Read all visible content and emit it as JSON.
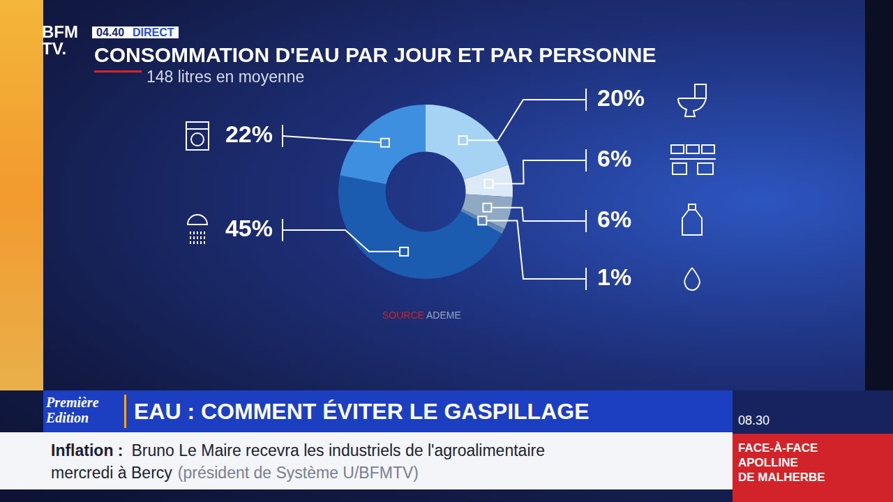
{
  "chart_data": {
    "type": "doughnut",
    "title": "CONSOMMATION D'EAU PAR JOUR ET PAR PERSONNE",
    "subtitle": "148 litres en moyenne",
    "source_label": "SOURCE",
    "source": "ADEME",
    "categories": [
      null,
      null,
      null,
      null,
      null,
      null
    ],
    "values": [
      20,
      6,
      6,
      1,
      45,
      22
    ],
    "value_labels": [
      "20%",
      "6%",
      "6%",
      "1%",
      "45%",
      "22%"
    ],
    "colors": [
      "#a6d2f3",
      "#dbeaf6",
      "#8fa9c2",
      "#5f86b8",
      "#1c5cb0",
      "#3f8fe0"
    ],
    "data_labels": true
  },
  "screen": {
    "logo": [
      "BFM",
      "TV."
    ],
    "time": "04.40",
    "live": "DIRECT",
    "show": [
      "Première",
      "Edition"
    ],
    "headline": "EAU : COMMENT ÉVITER LE GASPILLAGE",
    "ticker": {
      "topic": "Inflation :",
      "lines": [
        "Bruno Le Maire recevra les industriels de l'agroalimentaire",
        "mercredi à Bercy"
      ],
      "credit": "(président de Système U/BFMTV)"
    },
    "next": {
      "time": "08.30",
      "lines": [
        "FACE-À-FACE",
        "APOLLINE",
        "DE MALHERBE"
      ]
    }
  }
}
